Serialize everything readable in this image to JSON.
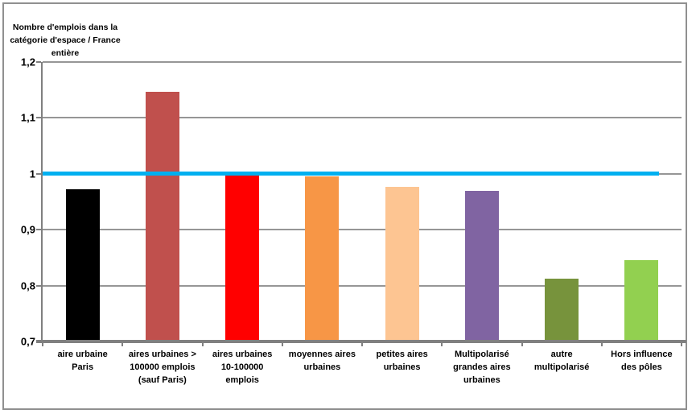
{
  "chart": {
    "background": "#FFFFFF",
    "border_color": "#909090",
    "axis_color": "#808080",
    "grid_color": "#969696",
    "text_color": "#000000"
  },
  "chart_data": {
    "type": "bar",
    "title": "",
    "ylabel": "Nombre d'emplois dans la catégorie d'espace / France entière",
    "ylabel_lines": [
      "Nombre d'emplois dans la",
      "catégorie d'espace / France",
      "entière"
    ],
    "xlabel": "",
    "ylim": [
      0.7,
      1.2
    ],
    "grid": true,
    "legend": "none",
    "yticks": [
      {
        "value": 1.2,
        "label": "1,2"
      },
      {
        "value": 1.1,
        "label": "1,1"
      },
      {
        "value": 1.0,
        "label": "1"
      },
      {
        "value": 0.9,
        "label": "0,9"
      },
      {
        "value": 0.8,
        "label": "0,8"
      },
      {
        "value": 0.7,
        "label": "0,7"
      }
    ],
    "categories": [
      "aire urbaine Paris",
      "aires urbaines > 100000 emplois (sauf Paris)",
      "aires urbaines 10-100000 emplois",
      "moyennes aires urbaines",
      "petites aires urbaines",
      "Multipolarisé grandes aires urbaines",
      "autre multipolarisé",
      "Hors influence des pôles"
    ],
    "category_lines": [
      [
        "aire urbaine",
        "Paris"
      ],
      [
        "aires urbaines >",
        "100000 emplois",
        "(sauf Paris)"
      ],
      [
        "aires urbaines",
        "10-100000",
        "emplois"
      ],
      [
        "moyennes aires",
        "urbaines"
      ],
      [
        "petites aires",
        "urbaines"
      ],
      [
        "Multipolarisé",
        "grandes aires",
        "urbaines"
      ],
      [
        "autre",
        "multipolarisé"
      ],
      [
        "Hors influence",
        "des pôles"
      ]
    ],
    "values": [
      0.972,
      1.146,
      0.997,
      0.995,
      0.976,
      0.97,
      0.813,
      0.846
    ],
    "bar_colors": [
      "#000000",
      "#C0504D",
      "#FF0000",
      "#F79646",
      "#FDC592",
      "#8064A2",
      "#77933C",
      "#92D050"
    ],
    "reference_line": {
      "value": 1.0,
      "color": "#00B0F0"
    }
  }
}
